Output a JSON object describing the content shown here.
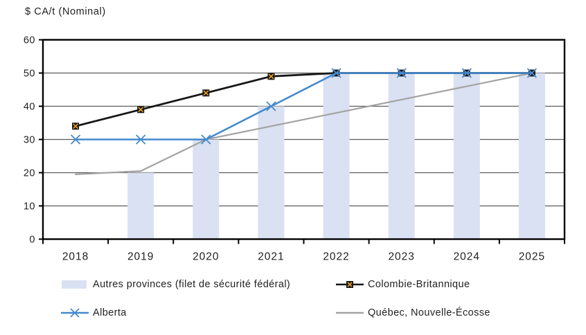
{
  "page": {
    "background": "#FFFFFF"
  },
  "chart_data": {
    "type": "combo-bar-line",
    "title": "",
    "axis_title": "$ CA/t (Nominal)",
    "xlabel": "",
    "ylabel": "$ CA/t (Nominal)",
    "categories": [
      "2018",
      "2019",
      "2020",
      "2021",
      "2022",
      "2023",
      "2024",
      "2025"
    ],
    "ylim": [
      0,
      60
    ],
    "ytick_interval": 10,
    "ytick_labels": [
      "0",
      "10",
      "20",
      "30",
      "40",
      "50",
      "60"
    ],
    "grid": "horizontal",
    "legend_position": "bottom",
    "colors": {
      "grid": "#5a5a5a",
      "axis": "#000000",
      "text": "#1f1f1f",
      "background": "#ffffff"
    },
    "series": [
      {
        "name": "Autres provinces (filet de sécurité fédéral)",
        "type": "bar",
        "color": "#D9E1F2",
        "values": [
          0,
          20,
          30,
          40,
          50,
          50,
          50,
          50
        ]
      },
      {
        "name": "Colombie-Britannique",
        "type": "line",
        "color": "#161616",
        "marker": "square-x",
        "marker_fill": "#161616",
        "marker_accent": "#EBA226",
        "values": [
          34,
          39,
          44,
          49,
          50,
          50,
          50,
          50
        ]
      },
      {
        "name": "Alberta",
        "type": "line",
        "color": "#4389CE",
        "marker": "x",
        "values": [
          30,
          30,
          30,
          40,
          50,
          50,
          50,
          50
        ]
      },
      {
        "name": "Québec, Nouvelle-Écosse",
        "type": "line",
        "color": "#A3A3A3",
        "marker": "none",
        "values": [
          19.5,
          20.5,
          30,
          34,
          38,
          42,
          46,
          50
        ]
      }
    ]
  }
}
